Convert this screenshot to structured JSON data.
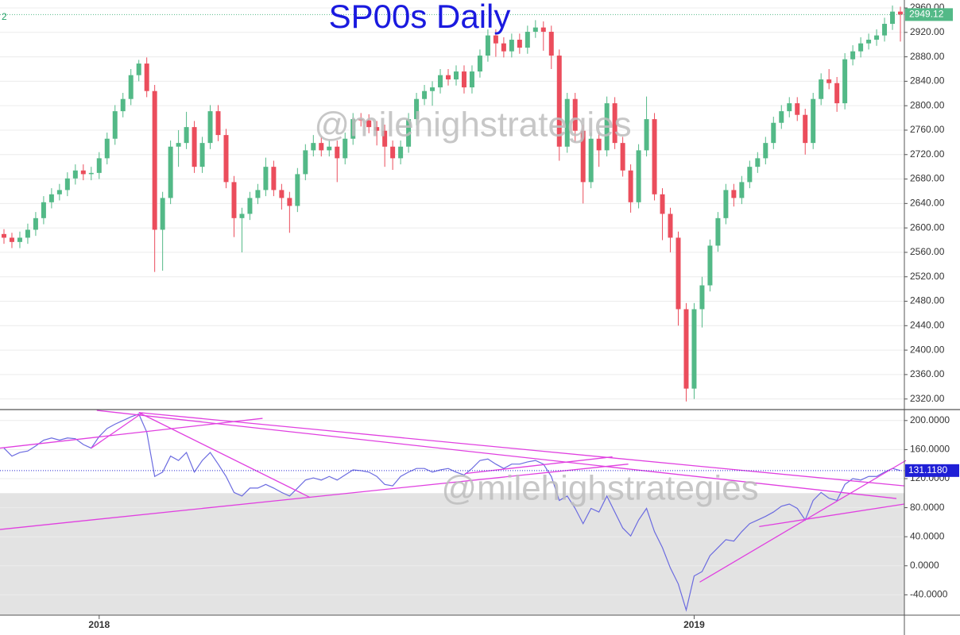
{
  "chart_data": [
    {
      "type": "candlestick",
      "title": "SP00s Daily",
      "corner_text": "2",
      "watermark": "@milehighstrategies",
      "up_color": "#53b987",
      "down_color": "#eb4d5c",
      "grid": true,
      "ylim": [
        2304,
        2973
      ],
      "yticks": [
        {
          "value": 2320,
          "label": "2320.00"
        },
        {
          "value": 2360,
          "label": "2360.00"
        },
        {
          "value": 2400,
          "label": "2400.00"
        },
        {
          "value": 2440,
          "label": "2440.00"
        },
        {
          "value": 2480,
          "label": "2480.00"
        },
        {
          "value": 2520,
          "label": "2520.00"
        },
        {
          "value": 2560,
          "label": "2560.00"
        },
        {
          "value": 2600,
          "label": "2600.00"
        },
        {
          "value": 2640,
          "label": "2640.00"
        },
        {
          "value": 2680,
          "label": "2680.00"
        },
        {
          "value": 2720,
          "label": "2720.00"
        },
        {
          "value": 2760,
          "label": "2760.00"
        },
        {
          "value": 2800,
          "label": "2800.00"
        },
        {
          "value": 2840,
          "label": "2840.00"
        },
        {
          "value": 2880,
          "label": "2880.00"
        },
        {
          "value": 2920,
          "label": "2920.00"
        },
        {
          "value": 2960,
          "label": "2960.00"
        }
      ],
      "last_value_label": "2949.12",
      "open": [
        2590,
        2584,
        2577,
        2584,
        2597,
        2616,
        2642,
        2655,
        2662,
        2681,
        2694,
        2688,
        2690,
        2714,
        2746,
        2791,
        2811,
        2850,
        2869,
        2824,
        2597,
        2649,
        2733,
        2739,
        2765,
        2700,
        2739,
        2791,
        2752,
        2675,
        2616,
        2623,
        2649,
        2662,
        2700,
        2662,
        2649,
        2636,
        2688,
        2727,
        2739,
        2727,
        2733,
        2714,
        2746,
        2778,
        2776,
        2765,
        2759,
        2733,
        2714,
        2733,
        2778,
        2811,
        2824,
        2830,
        2850,
        2843,
        2856,
        2830,
        2856,
        2882,
        2915,
        2902,
        2889,
        2908,
        2895,
        2921,
        2928,
        2921,
        2882,
        2733,
        2811,
        2759,
        2675,
        2746,
        2727,
        2804,
        2739,
        2694,
        2642,
        2727,
        2778,
        2655,
        2623,
        2584,
        2467,
        2337,
        2467,
        2506,
        2571,
        2616,
        2662,
        2649,
        2675,
        2700,
        2714,
        2739,
        2772,
        2791,
        2804,
        2785,
        2739,
        2811,
        2843,
        2837,
        2804,
        2876,
        2889,
        2902,
        2908,
        2915,
        2934,
        2954
      ],
      "high": [
        2598,
        2592,
        2594,
        2607,
        2626,
        2652,
        2665,
        2672,
        2691,
        2704,
        2704,
        2700,
        2724,
        2756,
        2801,
        2821,
        2860,
        2875,
        2879,
        2834,
        2659,
        2743,
        2760,
        2790,
        2775,
        2749,
        2801,
        2801,
        2762,
        2685,
        2633,
        2659,
        2672,
        2715,
        2710,
        2672,
        2659,
        2698,
        2737,
        2752,
        2749,
        2743,
        2743,
        2756,
        2788,
        2788,
        2786,
        2775,
        2769,
        2743,
        2743,
        2788,
        2821,
        2834,
        2840,
        2860,
        2860,
        2866,
        2866,
        2866,
        2892,
        2925,
        2925,
        2912,
        2918,
        2918,
        2931,
        2940,
        2938,
        2931,
        2892,
        2821,
        2821,
        2769,
        2756,
        2756,
        2815,
        2814,
        2749,
        2704,
        2737,
        2815,
        2788,
        2665,
        2633,
        2594,
        2477,
        2477,
        2520,
        2581,
        2626,
        2672,
        2672,
        2685,
        2710,
        2724,
        2749,
        2782,
        2801,
        2814,
        2814,
        2795,
        2821,
        2853,
        2860,
        2847,
        2886,
        2899,
        2912,
        2918,
        2925,
        2944,
        2964,
        2962
      ],
      "low": [
        2574,
        2567,
        2567,
        2574,
        2587,
        2606,
        2632,
        2645,
        2652,
        2671,
        2678,
        2678,
        2680,
        2704,
        2736,
        2781,
        2801,
        2840,
        2814,
        2528,
        2530,
        2639,
        2700,
        2729,
        2690,
        2690,
        2729,
        2742,
        2665,
        2585,
        2560,
        2613,
        2639,
        2652,
        2652,
        2630,
        2592,
        2626,
        2678,
        2717,
        2717,
        2717,
        2675,
        2704,
        2736,
        2766,
        2755,
        2735,
        2700,
        2695,
        2704,
        2723,
        2768,
        2801,
        2800,
        2820,
        2833,
        2833,
        2820,
        2820,
        2846,
        2872,
        2880,
        2879,
        2879,
        2885,
        2885,
        2911,
        2890,
        2860,
        2710,
        2723,
        2740,
        2640,
        2665,
        2700,
        2717,
        2729,
        2684,
        2625,
        2632,
        2717,
        2645,
        2580,
        2560,
        2440,
        2316,
        2320,
        2437,
        2496,
        2561,
        2606,
        2635,
        2639,
        2665,
        2690,
        2704,
        2729,
        2762,
        2781,
        2775,
        2720,
        2729,
        2801,
        2827,
        2790,
        2794,
        2866,
        2879,
        2892,
        2898,
        2905,
        2924,
        2905
      ],
      "close": [
        2584,
        2577,
        2584,
        2597,
        2616,
        2642,
        2655,
        2662,
        2681,
        2694,
        2688,
        2690,
        2714,
        2746,
        2791,
        2811,
        2850,
        2869,
        2824,
        2597,
        2649,
        2733,
        2739,
        2765,
        2700,
        2739,
        2791,
        2752,
        2675,
        2616,
        2623,
        2649,
        2662,
        2700,
        2662,
        2649,
        2636,
        2688,
        2727,
        2739,
        2727,
        2733,
        2714,
        2746,
        2778,
        2776,
        2765,
        2759,
        2733,
        2714,
        2733,
        2778,
        2811,
        2824,
        2830,
        2850,
        2843,
        2856,
        2830,
        2856,
        2882,
        2915,
        2902,
        2889,
        2908,
        2895,
        2921,
        2928,
        2921,
        2882,
        2733,
        2811,
        2759,
        2675,
        2746,
        2727,
        2804,
        2739,
        2694,
        2642,
        2727,
        2778,
        2655,
        2623,
        2584,
        2467,
        2337,
        2467,
        2506,
        2571,
        2616,
        2662,
        2649,
        2675,
        2700,
        2714,
        2739,
        2772,
        2791,
        2804,
        2785,
        2739,
        2811,
        2843,
        2837,
        2804,
        2876,
        2889,
        2902,
        2908,
        2915,
        2934,
        2954,
        2949.12
      ]
    },
    {
      "type": "line",
      "watermark": "@milehighstrategies",
      "color": "#6b6be0",
      "grid": true,
      "ylim": [
        -68,
        214
      ],
      "shade_below": 100,
      "shade_color": "#e3e3e3",
      "last_value_label": "131.1180",
      "yticks": [
        {
          "value": -40,
          "label": "-40.0000"
        },
        {
          "value": 0,
          "label": "0.0000"
        },
        {
          "value": 40,
          "label": "40.0000"
        },
        {
          "value": 80,
          "label": "80.0000"
        },
        {
          "value": 120,
          "label": "120.0000"
        },
        {
          "value": 160,
          "label": "160.0000"
        },
        {
          "value": 200,
          "label": "200.0000"
        }
      ],
      "categories": [
        null,
        null,
        null,
        null,
        null,
        null,
        null,
        null,
        null,
        null,
        null,
        null,
        "2018",
        null,
        null,
        null,
        null,
        null,
        null,
        null,
        null,
        null,
        null,
        null,
        null,
        null,
        null,
        null,
        null,
        null,
        null,
        null,
        null,
        null,
        null,
        null,
        null,
        null,
        null,
        null,
        null,
        null,
        null,
        null,
        null,
        null,
        null,
        null,
        null,
        null,
        null,
        null,
        null,
        null,
        null,
        null,
        null,
        null,
        null,
        null,
        null,
        null,
        null,
        null,
        null,
        null,
        null,
        null,
        null,
        null,
        null,
        null,
        null,
        null,
        null,
        null,
        null,
        null,
        null,
        null,
        null,
        null,
        null,
        null,
        null,
        null,
        null,
        "2019",
        null,
        null,
        null,
        null,
        null,
        null,
        null,
        null,
        null,
        null,
        null,
        null,
        null,
        null,
        null,
        null,
        null,
        null,
        null,
        null,
        null,
        null,
        null,
        null,
        null,
        null
      ],
      "values": [
        162,
        151,
        156,
        158,
        165,
        173,
        176,
        173,
        176,
        175,
        167,
        162,
        178,
        189,
        195,
        200,
        205,
        209,
        184,
        123,
        129,
        151,
        145,
        156,
        129,
        145,
        156,
        140,
        123,
        101,
        96,
        107,
        107,
        112,
        107,
        101,
        96,
        107,
        118,
        121,
        118,
        123,
        118,
        125,
        132,
        131,
        129,
        123,
        112,
        110,
        123,
        129,
        134,
        134,
        129,
        132,
        134,
        129,
        125,
        134,
        145,
        147,
        140,
        134,
        140,
        140,
        143,
        145,
        140,
        123,
        90,
        96,
        79,
        58,
        79,
        74,
        96,
        74,
        52,
        41,
        63,
        79,
        47,
        25,
        -3,
        -25,
        -61,
        -14,
        -8,
        14,
        25,
        36,
        34,
        47,
        58,
        63,
        68,
        74,
        82,
        85,
        79,
        63,
        90,
        101,
        93,
        90,
        112,
        120,
        118,
        123,
        123,
        129,
        134,
        131.118
      ],
      "trendline_color": "#e040e0",
      "trendlines": [
        {
          "x": [
            11.7,
            112.5
          ],
          "y": [
            214,
            92.6
          ]
        },
        {
          "x": [
            -0.5,
            32.6
          ],
          "y": [
            162,
            203
          ]
        },
        {
          "x": [
            17,
            38.6
          ],
          "y": [
            211,
            94
          ]
        },
        {
          "x": [
            -0.5,
            78.7
          ],
          "y": [
            50,
            140
          ]
        },
        {
          "x": [
            58.1,
            76.7
          ],
          "y": [
            127,
            150
          ]
        },
        {
          "x": [
            17,
            113.5
          ],
          "y": [
            211,
            110
          ]
        },
        {
          "x": [
            87.7,
            113.7
          ],
          "y": [
            -22.5,
            145
          ]
        },
        {
          "x": [
            95.2,
            113.5
          ],
          "y": [
            54,
            85
          ]
        },
        {
          "x": [
            11,
            17.5
          ],
          "y": [
            162,
            211
          ]
        }
      ]
    }
  ]
}
